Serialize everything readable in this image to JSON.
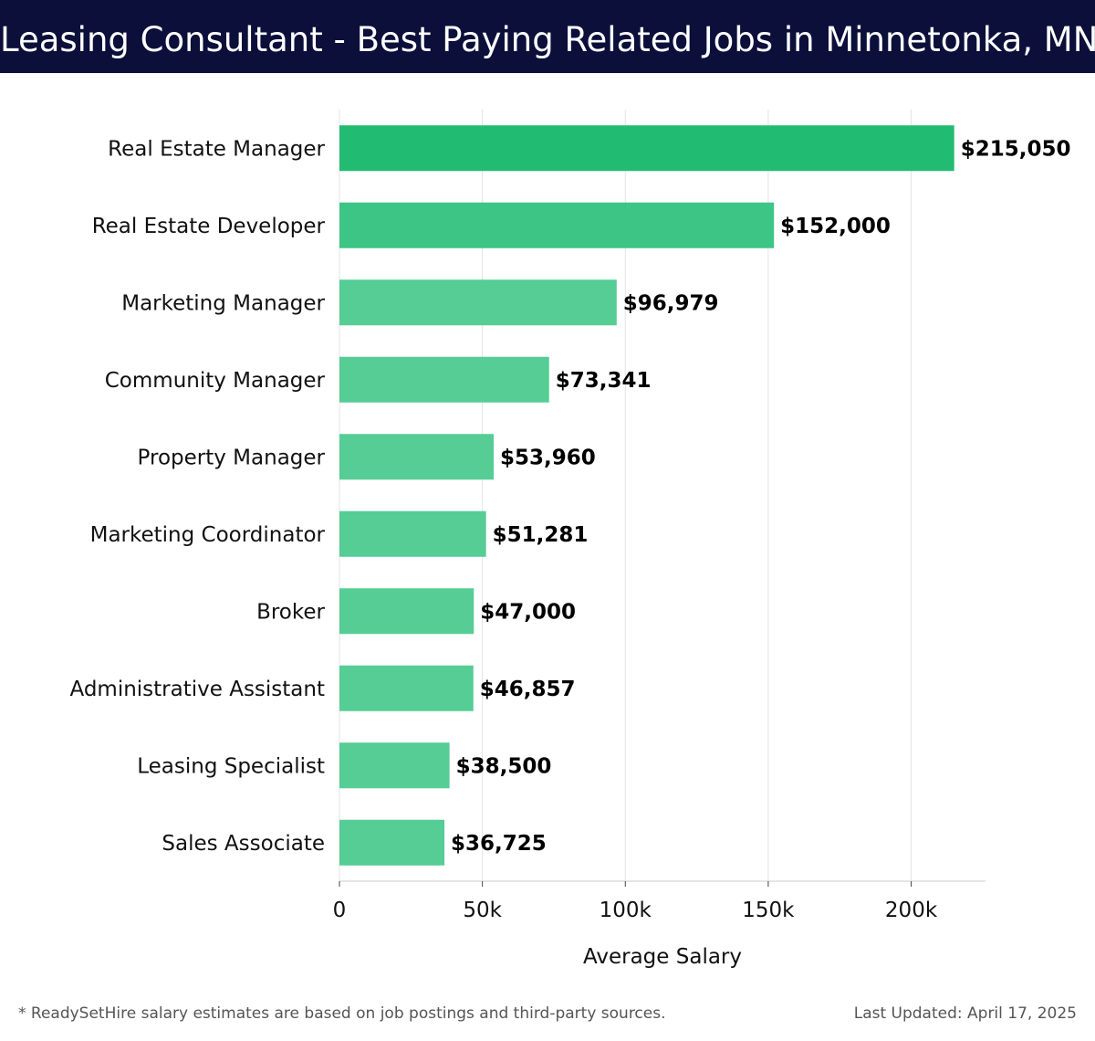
{
  "header": {
    "title": "Leasing Consultant - Best Paying Related Jobs in Minnetonka, MN"
  },
  "footer": {
    "footnote": "* ReadySetHire salary estimates are based on job postings and third-party sources.",
    "updated": "Last Updated: April 17, 2025"
  },
  "chart_data": {
    "type": "bar",
    "orientation": "horizontal",
    "title": "Leasing Consultant - Best Paying Related Jobs in Minnetonka, MN",
    "xlabel": "Average Salary",
    "ylabel": "",
    "xlim": [
      0,
      226000
    ],
    "xticks": [
      0,
      50000,
      100000,
      150000,
      200000
    ],
    "xtick_labels": [
      "0",
      "50k",
      "100k",
      "150k",
      "200k"
    ],
    "grid": "vertical",
    "categories": [
      "Real Estate Manager",
      "Real Estate Developer",
      "Marketing Manager",
      "Community Manager",
      "Property Manager",
      "Marketing Coordinator",
      "Broker",
      "Administrative Assistant",
      "Leasing Specialist",
      "Sales Associate"
    ],
    "values": [
      215050,
      152000,
      96979,
      73341,
      53960,
      51281,
      47000,
      46857,
      38500,
      36725
    ],
    "value_labels": [
      "$215,050",
      "$152,000",
      "$96,979",
      "$73,341",
      "$53,960",
      "$51,281",
      "$47,000",
      "$46,857",
      "$38,500",
      "$36,725"
    ],
    "colors": {
      "bar_top": "#22bb72",
      "bar_mid": "#3cc585",
      "bar_low": "#55cd95",
      "grid": "#e3e3e3",
      "axis": "#cccccc",
      "header_bg": "#0b0f3a"
    }
  }
}
